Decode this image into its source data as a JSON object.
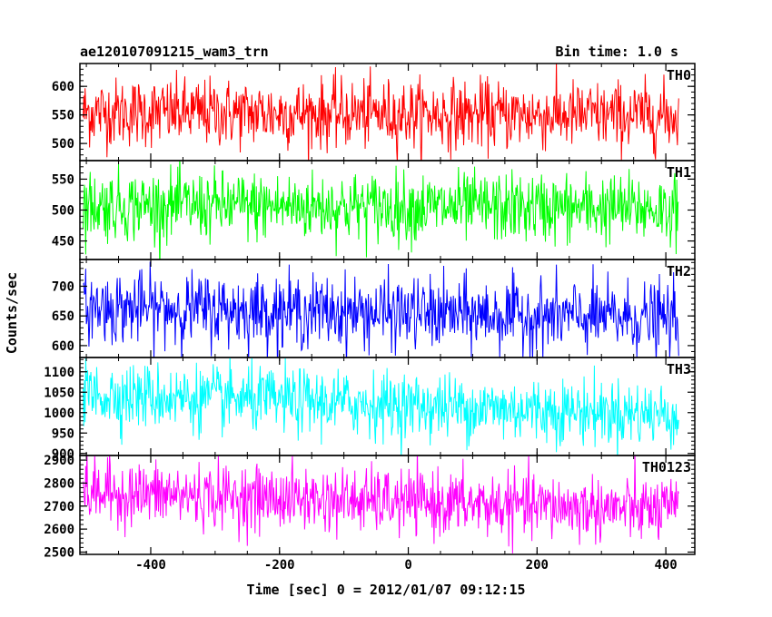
{
  "chart_data": {
    "type": "line",
    "title": "ae120107091215_wam3_trn",
    "subtitle": "Bin time: 1.0 s",
    "xlabel": "Time [sec] 0 = 2012/01/07 09:12:15",
    "ylabel": "Counts/sec",
    "xlim": [
      -510,
      445
    ],
    "xticks": [
      -400,
      -200,
      0,
      200,
      400
    ],
    "x_range": [
      -505,
      420
    ],
    "bin_time": 1.0,
    "grid": false,
    "panels": [
      {
        "name": "TH0",
        "color": "#ff0000",
        "ylim": [
          470,
          640
        ],
        "yticks": [
          500,
          550,
          600
        ],
        "mean_start": 555,
        "mean_end": 548,
        "spread": 30
      },
      {
        "name": "TH1",
        "color": "#00ff00",
        "ylim": [
          420,
          580
        ],
        "yticks": [
          450,
          500,
          550
        ],
        "mean_start": 508,
        "mean_end": 502,
        "spread": 28
      },
      {
        "name": "TH2",
        "color": "#0000ff",
        "ylim": [
          580,
          745
        ],
        "yticks": [
          600,
          650,
          700
        ],
        "mean_start": 665,
        "mean_end": 645,
        "spread": 30
      },
      {
        "name": "TH3",
        "color": "#00ffff",
        "ylim": [
          895,
          1135
        ],
        "yticks": [
          900,
          950,
          1000,
          1050,
          1100
        ],
        "mean_start": 1045,
        "mean_end": 995,
        "spread": 40
      },
      {
        "name": "TH0123",
        "color": "#ff00ff",
        "ylim": [
          2490,
          2920
        ],
        "yticks": [
          2500,
          2600,
          2700,
          2800,
          2900
        ],
        "mean_start": 2760,
        "mean_end": 2680,
        "spread": 70
      }
    ]
  }
}
